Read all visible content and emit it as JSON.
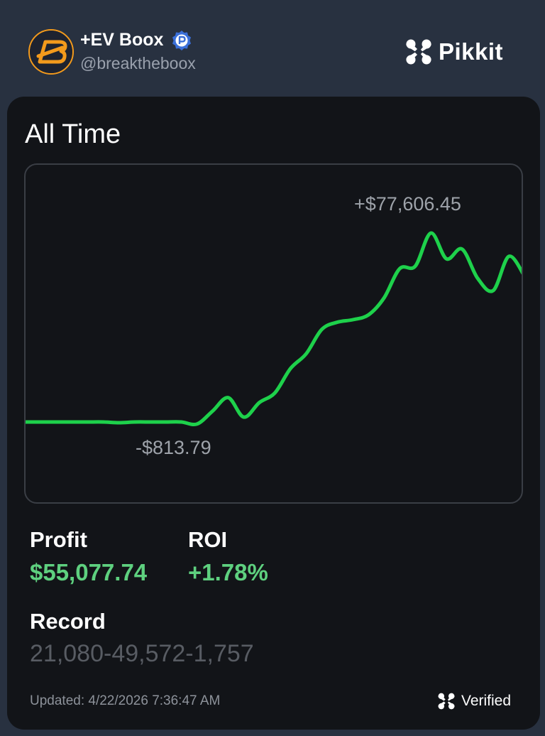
{
  "header": {
    "user_name": "+EV Boox",
    "user_handle": "@breaktheboox",
    "brand_name": "Pikkit"
  },
  "card": {
    "title": "All Time",
    "chart_max_label": "+$77,606.45",
    "chart_min_label": "-$813.79",
    "profit_label": "Profit",
    "profit_value": "$55,077.74",
    "roi_label": "ROI",
    "roi_value": "+1.78%",
    "record_label": "Record",
    "record_value": "21,080-49,572-1,757",
    "updated_text": "Updated: 4/22/2026 7:36:47 AM",
    "verified_label": "Verified"
  },
  "colors": {
    "background": "#283140",
    "card": "#121418",
    "line": "#1ed14b",
    "positive": "#5ed07f",
    "accent_orange": "#f39a1c",
    "badge_blue": "#3a6fd8"
  },
  "chart_data": {
    "type": "line",
    "series": [
      {
        "values": [
          0,
          0,
          0,
          0,
          0,
          0,
          -300,
          0,
          0,
          0,
          0,
          -813.79,
          4500,
          10000,
          2000,
          8000,
          12000,
          22000,
          28000,
          38000,
          41000,
          42000,
          44000,
          51000,
          63000,
          64000,
          77606.45,
          67000,
          71000,
          59000,
          54000,
          68000,
          60000
        ]
      }
    ]
  }
}
